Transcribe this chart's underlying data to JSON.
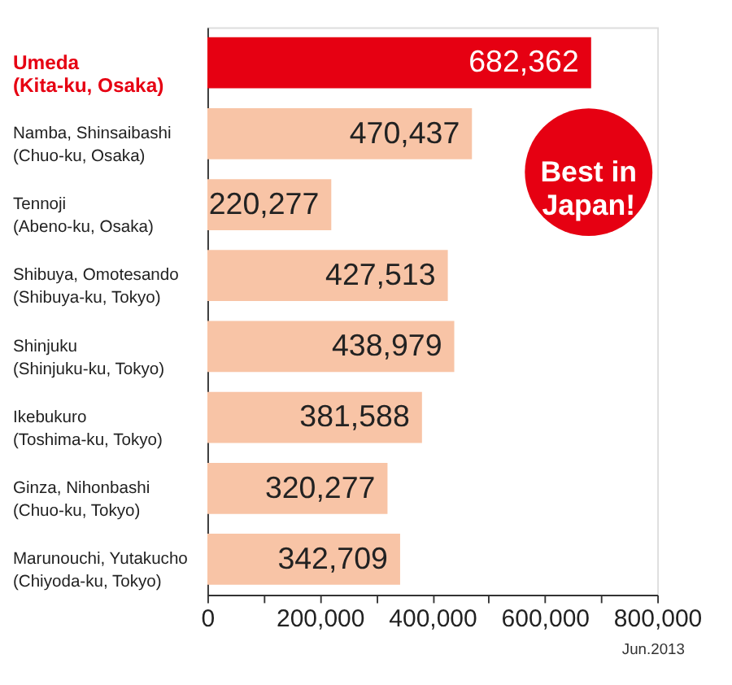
{
  "chart_data": {
    "type": "bar",
    "orientation": "horizontal",
    "categories": [
      "Umeda\n(Kita-ku, Osaka)",
      "Namba, Shinsaibashi\n(Chuo-ku, Osaka)",
      "Tennoji\n(Abeno-ku, Osaka)",
      "Shibuya, Omotesando\n(Shibuya-ku, Tokyo)",
      "Shinjuku\n(Shinjuku-ku, Tokyo)",
      "Ikebukuro\n(Toshima-ku, Tokyo)",
      "Ginza, Nihonbashi\n(Chuo-ku, Tokyo)",
      "Marunouchi, Yutakucho\n(Chiyoda-ku, Tokyo)"
    ],
    "values": [
      682362,
      470437,
      220277,
      427513,
      438979,
      381588,
      320277,
      342709
    ],
    "colors": [
      "#e60012",
      "#f8c4a6",
      "#f8c4a6",
      "#f8c4a6",
      "#f8c4a6",
      "#f8c4a6",
      "#f8c4a6",
      "#f8c4a6"
    ],
    "value_labels": [
      "682,362",
      "470,437",
      "220,277",
      "427,513",
      "438,979",
      "381,588",
      "320,277",
      "342,709"
    ],
    "xlim": [
      0,
      800000
    ],
    "xticks": [
      0,
      {
        "value": 100000,
        "label": null
      },
      {
        "value": 200000,
        "label": "200,000"
      },
      {
        "value": 300000,
        "label": null
      },
      {
        "value": 400000,
        "label": "400,000"
      },
      {
        "value": 500000,
        "label": null
      },
      {
        "value": 600000,
        "label": "600,000"
      },
      {
        "value": 700000,
        "label": null
      },
      {
        "value": 800000,
        "label": "800,000"
      }
    ],
    "grid": false,
    "annotations": [
      "Best in\nJapan!",
      "Jun.2013"
    ]
  }
}
